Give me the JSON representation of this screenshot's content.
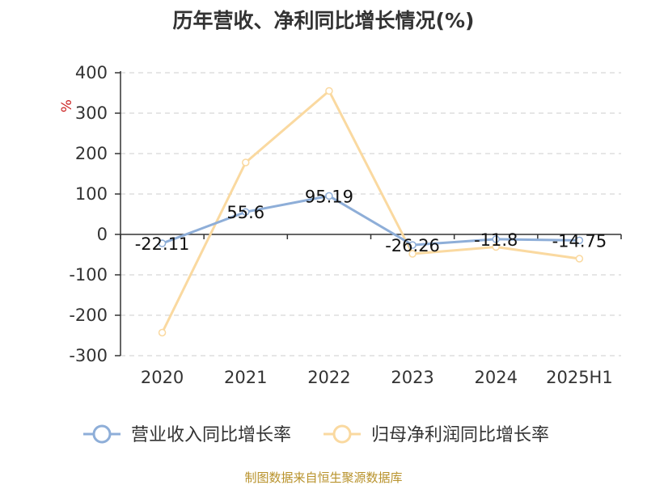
{
  "chart_data": {
    "type": "line",
    "title": "历年营收、净利同比增长情况(%)",
    "ylabel": "%",
    "xlabel": "",
    "categories": [
      "2020",
      "2021",
      "2022",
      "2023",
      "2024",
      "2025H1"
    ],
    "ylim": [
      -300,
      400
    ],
    "yticks": [
      400,
      300,
      200,
      100,
      0,
      -100,
      -200,
      -300
    ],
    "grid": true,
    "legend_position": "bottom",
    "series": [
      {
        "name": "营业收入同比增长率",
        "color": "#8eaed8",
        "values": [
          -22.11,
          55.6,
          95.19,
          -26.26,
          -11.8,
          -14.75
        ],
        "data_labels": [
          "-22.11",
          "55.6",
          "95.19",
          "-26.26",
          "-11.8",
          "-14.75"
        ]
      },
      {
        "name": "归母净利润同比增长率",
        "color": "#fad9a0",
        "values": [
          -243,
          178,
          355,
          -48,
          -31,
          -60
        ]
      }
    ]
  },
  "source": "制图数据来自恒生聚源数据库"
}
